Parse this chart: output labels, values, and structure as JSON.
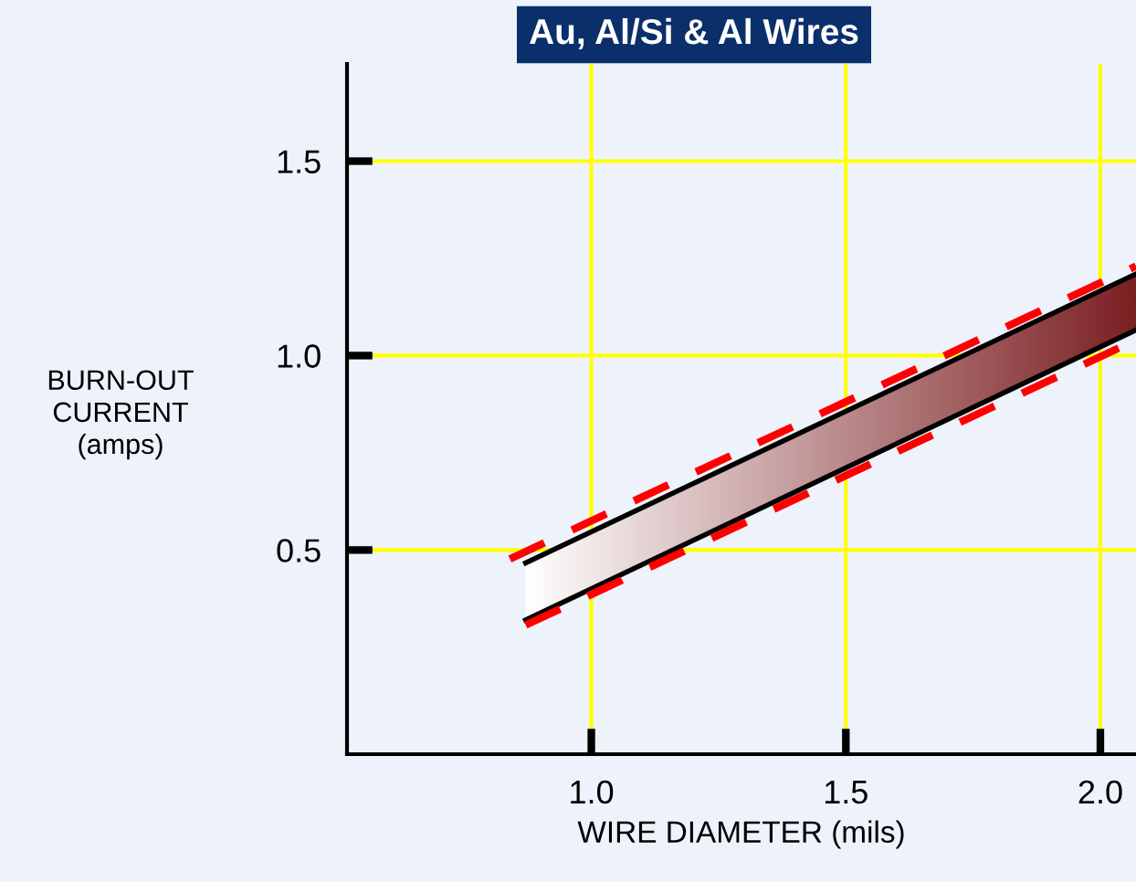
{
  "chart_data": {
    "type": "line",
    "title": "Au, Al/Si & Al Wires",
    "xlabel": "WIRE DIAMETER (mils)",
    "ylabel": "BURN-OUT\nCURRENT\n(amps)",
    "xlim": [
      0.52,
      2.07
    ],
    "ylim": [
      -0.025,
      1.75
    ],
    "xticks": [
      {
        "value": 1.0,
        "label": "1.0"
      },
      {
        "value": 1.5,
        "label": "1.5"
      },
      {
        "value": 2.0,
        "label": "2.0"
      }
    ],
    "yticks": [
      {
        "value": 0.5,
        "label": "0.5"
      },
      {
        "value": 1.0,
        "label": "1.0"
      },
      {
        "value": 1.5,
        "label": "1.5"
      }
    ],
    "grid": true,
    "series": [
      {
        "x": [
          0.871,
          2.07
        ],
        "values": [
          0.467,
          1.21
        ],
        "color": "#000000",
        "line_style": "solid",
        "colors": [
          "#ffffff",
          "#7b1f22"
        ]
      },
      {
        "x": [
          0.871,
          2.07
        ],
        "values": [
          0.32,
          1.066
        ],
        "color": "#000000",
        "line_style": "solid"
      },
      {
        "x": [
          0.84,
          2.07
        ],
        "values": [
          0.477,
          1.23
        ],
        "color": "#ff0000",
        "line_style": "dashed"
      },
      {
        "x": [
          0.871,
          2.07
        ],
        "values": [
          0.307,
          1.04
        ],
        "color": "#ff0000",
        "line_style": "dashed"
      }
    ]
  }
}
